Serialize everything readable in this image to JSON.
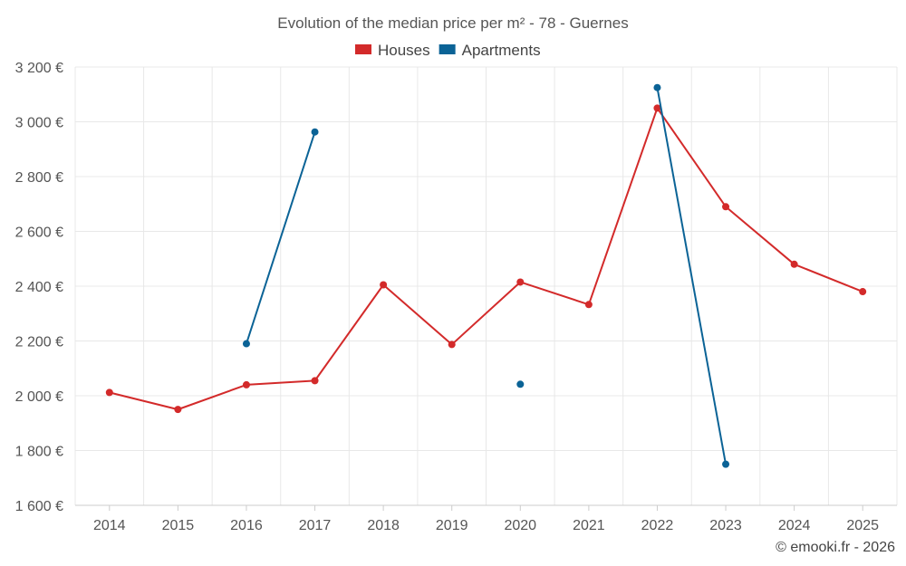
{
  "chart_data": {
    "type": "line",
    "title": "Evolution of the median price per m² - 78 - Guernes",
    "x": [
      "2014",
      "2015",
      "2016",
      "2017",
      "2018",
      "2019",
      "2020",
      "2021",
      "2022",
      "2023",
      "2024",
      "2025"
    ],
    "yticks": [
      "1 600 €",
      "1 800 €",
      "2 000 €",
      "2 200 €",
      "2 400 €",
      "2 600 €",
      "2 800 €",
      "3 000 €",
      "3 200 €"
    ],
    "ylim": [
      1600,
      3200
    ],
    "grid": true,
    "legend_position": "top-center",
    "series": [
      {
        "name": "Houses",
        "color": "#d32a2a",
        "values": [
          2012,
          1950,
          2040,
          2055,
          2405,
          2187,
          2415,
          2333,
          3050,
          2690,
          2480,
          2380
        ]
      },
      {
        "name": "Apartments",
        "color": "#0b6396",
        "values": [
          null,
          null,
          2190,
          2963,
          null,
          null,
          2042,
          null,
          3125,
          1750,
          null,
          null
        ]
      }
    ]
  },
  "credit": "© emooki.fr - 2026"
}
